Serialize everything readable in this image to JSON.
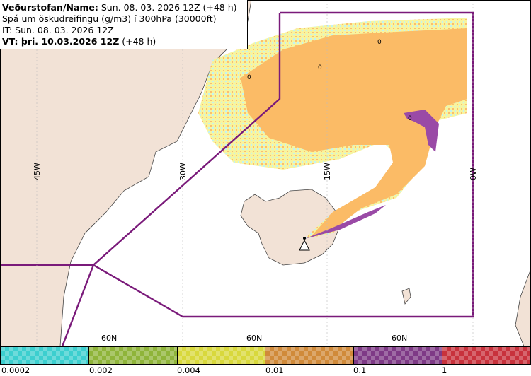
{
  "header": {
    "line1_bold": "Veðurstofan/Name:",
    "line1_rest": "Sun. 08. 03. 2026 12Z (+48 h)",
    "line2": "Spá um öskudreifingu (g/m3) í 300hPa (30000ft)",
    "line3": "IT: Sun. 08. 03. 2026 12Z",
    "line4_bold": "VT: þri. 10.03.2026 12Z",
    "line4_rest": "(+48 h)"
  },
  "map": {
    "lon_labels": [
      "45W",
      "30W",
      "15W",
      "0W"
    ],
    "lat_labels": [
      "60N",
      "60N",
      "60N"
    ],
    "contour_labels": [
      "0",
      "0",
      "0",
      "0"
    ],
    "colors": {
      "land": "#f2e2d6",
      "sea": "#ffffff",
      "fir_boundary": "#7a1a7a",
      "ash_orange": "#fbbb66",
      "ash_yellow": "#f7f39a",
      "ash_cyan": "#bff1f2",
      "ash_purple": "#9a4aa6"
    }
  },
  "legend": {
    "colors": [
      "#3ccfcf",
      "#8fb43a",
      "#d8d83c",
      "#d08a3a",
      "#7e3a86",
      "#c8323c"
    ],
    "labels": [
      "0.0002",
      "0.002",
      "0.004",
      "0.01",
      "0.1",
      "1"
    ]
  }
}
